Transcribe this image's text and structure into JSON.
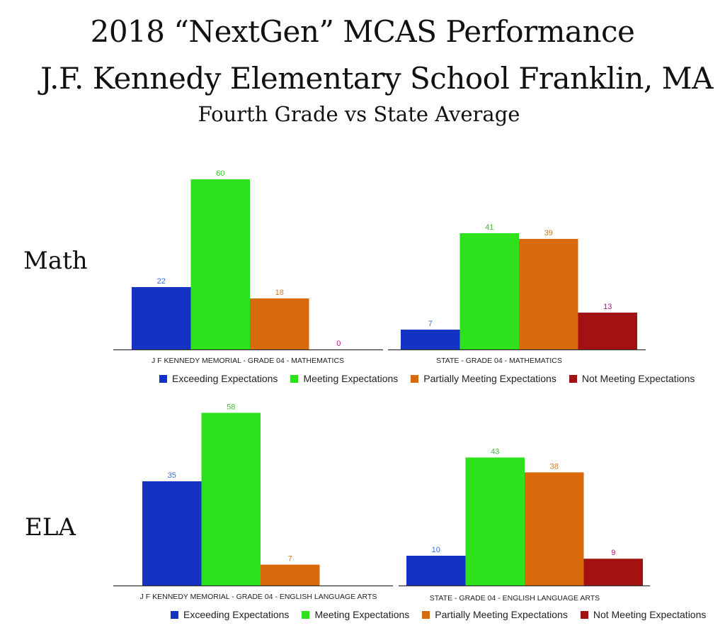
{
  "header": {
    "title_line1": "2018 “NextGen” MCAS Performance",
    "title_line2": "J.F. Kennedy Elementary School Franklin, MA",
    "subtitle": "Fourth Grade vs State Average"
  },
  "row_labels": {
    "math": "Math",
    "ela": "ELA"
  },
  "colors": {
    "exceeding": "#1433c4",
    "meeting": "#2de21c",
    "partially": "#d96a0c",
    "not_meeting": "#a31212",
    "exceeding_label": "#3a6fd8",
    "meeting_label": "#38c62a",
    "partially_label": "#d27a1e",
    "not_meeting_label": "#b0157a"
  },
  "legend": {
    "items": [
      {
        "key": "exceeding",
        "label": "Exceeding Expectations"
      },
      {
        "key": "meeting",
        "label": "Meeting Expectations"
      },
      {
        "key": "partially",
        "label": "Partially Meeting Expectations"
      },
      {
        "key": "not_meeting",
        "label": "Not Meeting Expectations"
      }
    ]
  },
  "chart_data": [
    {
      "id": "math-school",
      "type": "bar",
      "title": "J F KENNEDY MEMORIAL - GRADE 04 - MATHEMATICS",
      "categories": [
        "Exceeding Expectations",
        "Meeting Expectations",
        "Partially Meeting Expectations",
        "Not Meeting Expectations"
      ],
      "values": [
        22,
        60,
        18,
        0
      ],
      "ylim": [
        0,
        60
      ]
    },
    {
      "id": "math-state",
      "type": "bar",
      "title": "STATE - GRADE 04 - MATHEMATICS",
      "categories": [
        "Exceeding Expectations",
        "Meeting Expectations",
        "Partially Meeting Expectations",
        "Not Meeting Expectations"
      ],
      "values": [
        7,
        41,
        39,
        13
      ],
      "ylim": [
        0,
        60
      ]
    },
    {
      "id": "ela-school",
      "type": "bar",
      "title": "J F KENNEDY MEMORIAL - GRADE 04 - ENGLISH LANGUAGE ARTS",
      "categories": [
        "Exceeding Expectations",
        "Meeting Expectations",
        "Partially Meeting Expectations"
      ],
      "values": [
        35,
        58,
        7
      ],
      "ylim": [
        0,
        58
      ]
    },
    {
      "id": "ela-state",
      "type": "bar",
      "title": "STATE - GRADE 04 - ENGLISH LANGUAGE ARTS",
      "categories": [
        "Exceeding Expectations",
        "Meeting Expectations",
        "Partially Meeting Expectations",
        "Not Meeting Expectations"
      ],
      "values": [
        10,
        43,
        38,
        9
      ],
      "ylim": [
        0,
        58
      ]
    }
  ]
}
